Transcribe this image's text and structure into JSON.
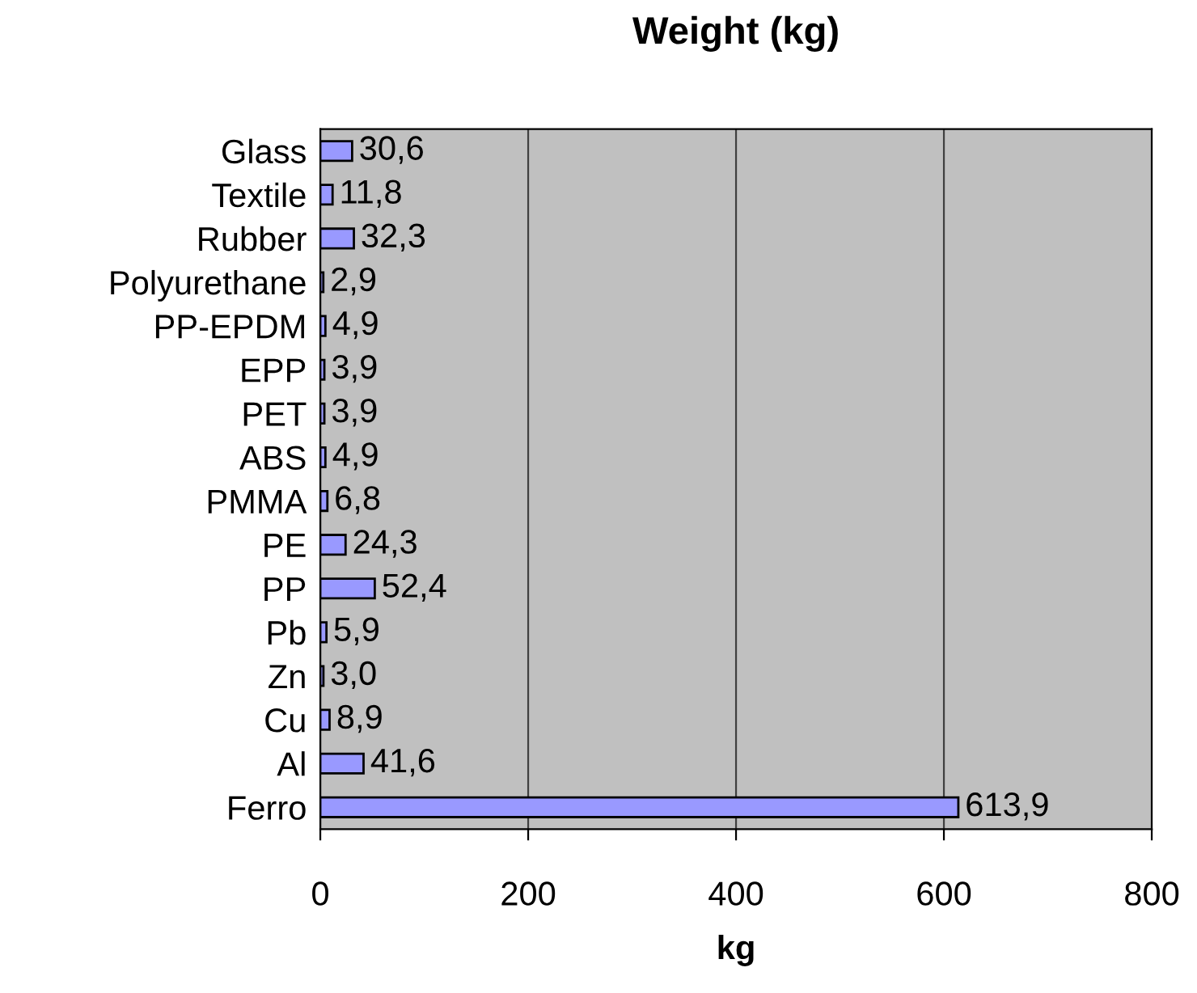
{
  "chart_data": {
    "type": "bar",
    "orientation": "horizontal",
    "title": "Weight (kg)",
    "xlabel": "kg",
    "categories": [
      "Glass",
      "Textile",
      "Rubber",
      "Polyurethane",
      "PP-EPDM",
      "EPP",
      "PET",
      "ABS",
      "PMMA",
      "PE",
      "PP",
      "Pb",
      "Zn",
      "Cu",
      "Al",
      "Ferro"
    ],
    "values": [
      30.6,
      11.8,
      32.3,
      2.9,
      4.9,
      3.9,
      3.9,
      4.9,
      6.8,
      24.3,
      52.4,
      5.9,
      3.0,
      8.9,
      41.6,
      613.9
    ],
    "value_labels": [
      "30,6",
      "11,8",
      "32,3",
      "2,9",
      "4,9",
      "3,9",
      "3,9",
      "4,9",
      "6,8",
      "24,3",
      "52,4",
      "5,9",
      "3,0",
      "8,9",
      "41,6",
      "613,9"
    ],
    "color": "#9999ff",
    "xlim": [
      0,
      800
    ],
    "xticks": [
      0,
      200,
      400,
      600,
      800
    ],
    "grid": "x",
    "legend": false
  }
}
